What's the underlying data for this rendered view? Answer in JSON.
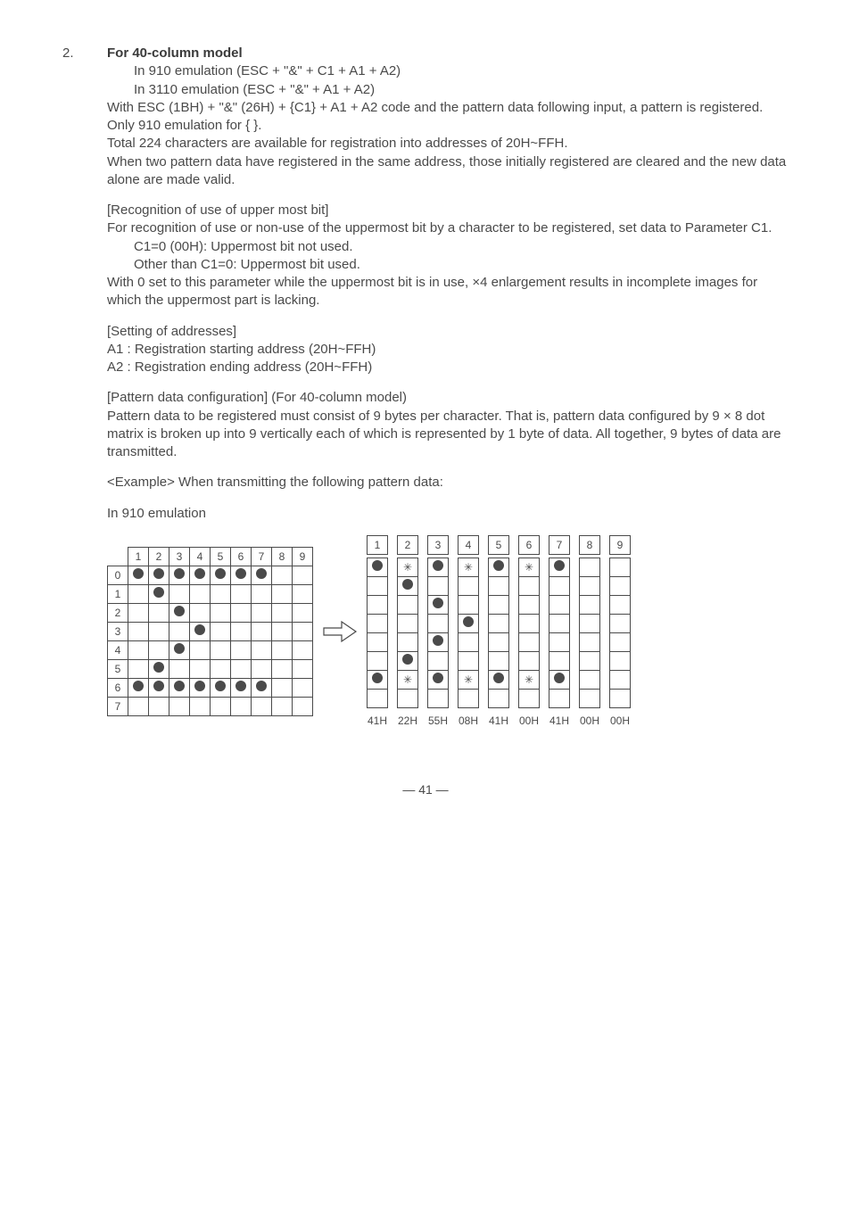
{
  "item": {
    "number": "2.",
    "title": "For 40-column model",
    "line1": "In 910 emulation (ESC + \"&\" + C1 + A1 + A2)",
    "line2": "In 3110 emulation (ESC + \"&\" + A1 + A2)",
    "para1a": "With ESC (1BH) + \"&\" (26H) + {C1} + A1 + A2 code and the pattern data following input, a pattern is registered.  Only 910 emulation for { }.",
    "para1b": "Total 224 characters are available for registration into addresses of 20H~FFH.",
    "para1c": "When two pattern data have registered in the same address, those initially registered are cleared and the new data alone are made valid.",
    "recog_title": "[Recognition of use of upper most bit]",
    "recog_p": "For recognition of use or non-use of the uppermost bit by a character to be registered, set data to Parameter C1.",
    "recog_l1": "C1=0 (00H): Uppermost bit not used.",
    "recog_l2": "Other than C1=0: Uppermost bit used.",
    "recog_p2": "With 0 set to this parameter while the uppermost bit is in use, ×4 enlargement results in incomplete images for which the uppermost part is lacking.",
    "addr_title": "[Setting of addresses]",
    "addr_l1": "A1 : Registration starting address (20H~FFH)",
    "addr_l2": "A2 : Registration ending address (20H~FFH)",
    "pat_title": "[Pattern data configuration] (For 40-column model)",
    "pat_p": "Pattern data to be registered must consist of 9 bytes per character.  That is, pattern data configured by 9 × 8 dot matrix is broken up into 9 vertically each of which is represented by 1 byte of data.  All together, 9 bytes of data are transmitted.",
    "example": "<Example>  When transmitting the following pattern data:",
    "emu_label": "In 910 emulation"
  },
  "grid": {
    "cols": [
      "1",
      "2",
      "3",
      "4",
      "5",
      "6",
      "7",
      "8",
      "9"
    ],
    "rows": [
      "0",
      "1",
      "2",
      "3",
      "4",
      "5",
      "6",
      "7"
    ],
    "dots": [
      [
        1,
        1,
        1,
        1,
        1,
        1,
        1,
        0,
        0
      ],
      [
        0,
        1,
        0,
        0,
        0,
        0,
        0,
        0,
        0
      ],
      [
        0,
        0,
        1,
        0,
        0,
        0,
        0,
        0,
        0
      ],
      [
        0,
        0,
        0,
        1,
        0,
        0,
        0,
        0,
        0
      ],
      [
        0,
        0,
        1,
        0,
        0,
        0,
        0,
        0,
        0
      ],
      [
        0,
        1,
        0,
        0,
        0,
        0,
        0,
        0,
        0
      ],
      [
        1,
        1,
        1,
        1,
        1,
        1,
        1,
        0,
        0
      ],
      [
        0,
        0,
        0,
        0,
        0,
        0,
        0,
        0,
        0
      ]
    ]
  },
  "columns": [
    {
      "header": "1",
      "cells": [
        "d",
        "",
        "",
        "",
        "",
        "",
        "d",
        ""
      ],
      "hex": "41H"
    },
    {
      "header": "2",
      "cells": [
        "s",
        "d",
        "",
        "",
        "",
        "d",
        "s",
        ""
      ],
      "hex": "22H"
    },
    {
      "header": "3",
      "cells": [
        "d",
        "",
        "d",
        "",
        "d",
        "",
        "d",
        ""
      ],
      "hex": "55H"
    },
    {
      "header": "4",
      "cells": [
        "s",
        "",
        "",
        "d",
        "",
        "",
        "s",
        ""
      ],
      "hex": "08H"
    },
    {
      "header": "5",
      "cells": [
        "d",
        "",
        "",
        "",
        "",
        "",
        "d",
        ""
      ],
      "hex": "41H"
    },
    {
      "header": "6",
      "cells": [
        "s",
        "",
        "",
        "",
        "",
        "",
        "s",
        ""
      ],
      "hex": "00H"
    },
    {
      "header": "7",
      "cells": [
        "d",
        "",
        "",
        "",
        "",
        "",
        "d",
        ""
      ],
      "hex": "41H"
    },
    {
      "header": "8",
      "cells": [
        "",
        "",
        "",
        "",
        "",
        "",
        "",
        ""
      ],
      "hex": "00H"
    },
    {
      "header": "9",
      "cells": [
        "",
        "",
        "",
        "",
        "",
        "",
        "",
        ""
      ],
      "hex": "00H"
    }
  ],
  "page": "— 41 —"
}
